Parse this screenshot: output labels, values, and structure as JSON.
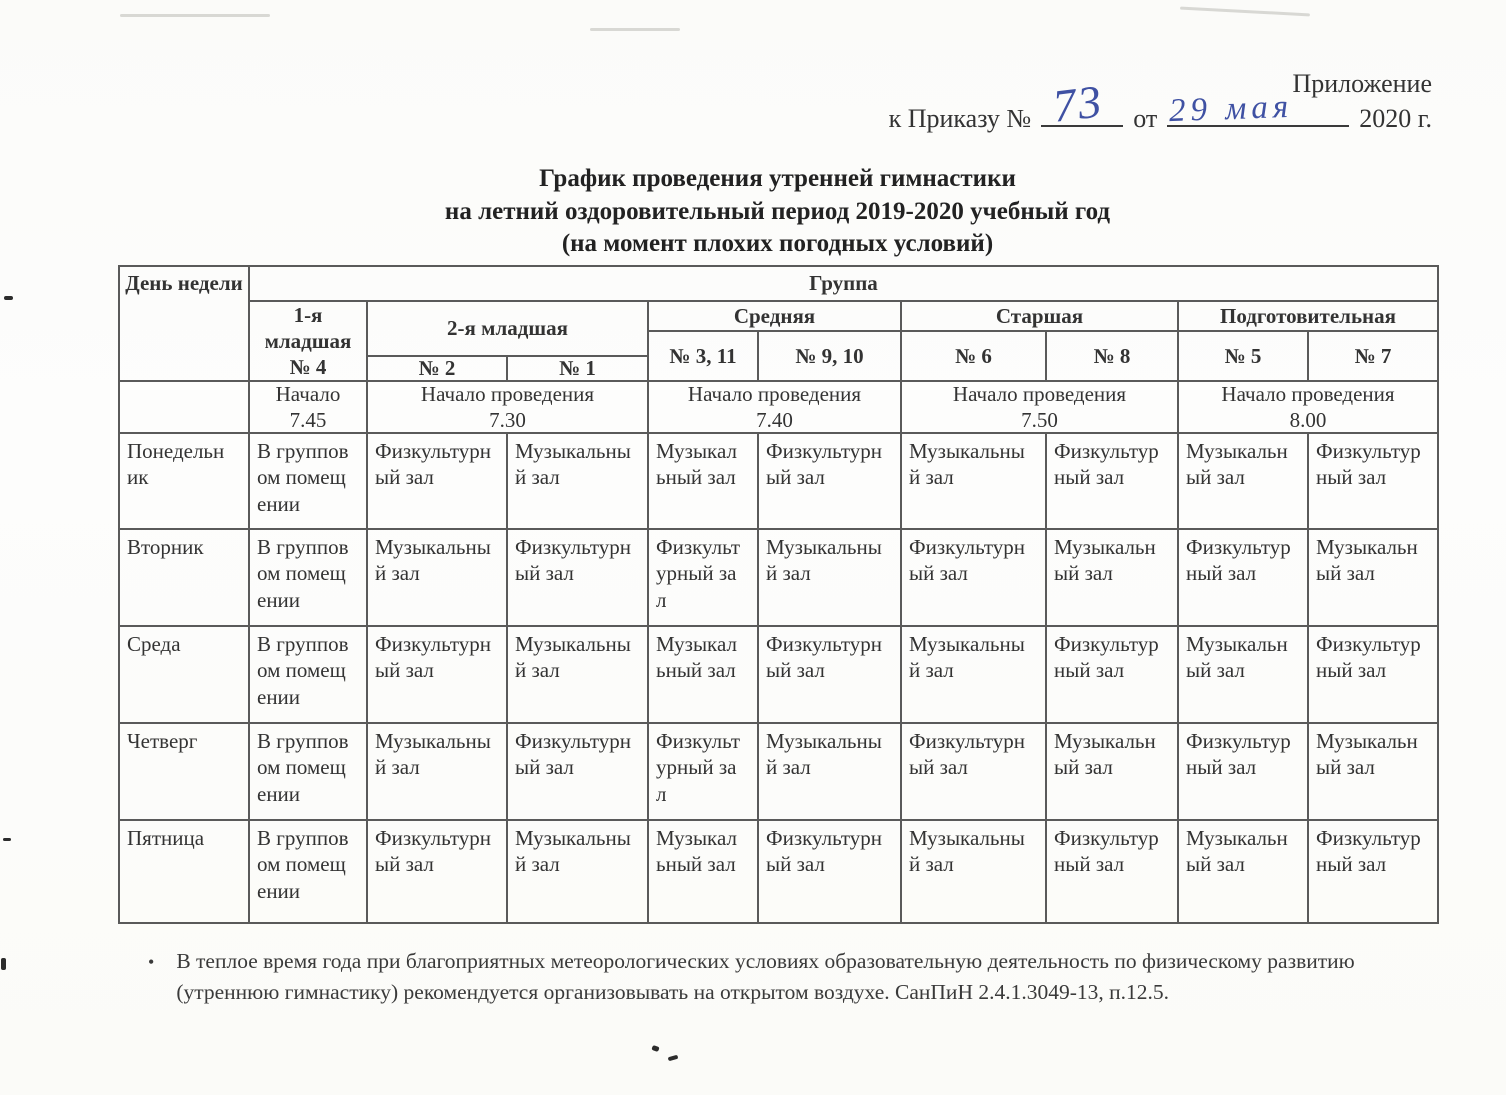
{
  "header": {
    "appendix": "Приложение",
    "order_prefix": "к Приказу №",
    "order_no": "73",
    "from_word": "от",
    "order_date": "29 мая",
    "year_suffix": "2020 г."
  },
  "title": {
    "line1": "График проведения утренней гимнастики",
    "line2": "на летний оздоровительный период 2019-2020 учебный год",
    "line3": "(на момент плохих погодных условий)"
  },
  "schedule": {
    "corner": "День недели",
    "banner": "Группа",
    "groups": [
      {
        "label": "1-я младшая",
        "sub": "№ 4"
      },
      {
        "label": "2-я младшая",
        "subs": [
          "№ 2",
          "№ 1"
        ]
      },
      {
        "label": "Средняя",
        "subs": [
          "№ 3, 11",
          "№ 9, 10"
        ]
      },
      {
        "label": "Старшая",
        "subs": [
          "№ 6",
          "№ 8"
        ]
      },
      {
        "label": "Подготовительная",
        "subs": [
          "№ 5",
          "№ 7"
        ]
      }
    ],
    "starts": [
      {
        "label": "Начало",
        "time": "7.45"
      },
      {
        "label": "Начало проведения",
        "time": "7.30"
      },
      {
        "label": "Начало проведения",
        "time": "7.40"
      },
      {
        "label": "Начало проведения",
        "time": "7.50"
      },
      {
        "label": "Начало проведения",
        "time": "8.00"
      }
    ],
    "rows": [
      {
        "day": "Понедельник",
        "cells": [
          "В групповом помещении",
          "Физкультурный зал",
          "Музыкальный зал",
          "Музыкальный зал",
          "Физкультурный зал",
          "Музыкальный зал",
          "Физкультурный зал",
          "Музыкальный зал",
          "Физкультурный зал"
        ]
      },
      {
        "day": "Вторник",
        "cells": [
          "В групповом помещении",
          "Музыкальный зал",
          "Физкультурный зал",
          "Физкультурный зал",
          "Музыкальный зал",
          "Физкультурный зал",
          "Музыкальный зал",
          "Физкультурный зал",
          "Музыкальный зал"
        ]
      },
      {
        "day": "Среда",
        "cells": [
          "В групповом помещении",
          "Физкультурный зал",
          "Музыкальный зал",
          "Музыкальный зал",
          "Физкультурный зал",
          "Музыкальный зал",
          "Физкультурный зал",
          "Музыкальный зал",
          "Физкультурный зал"
        ]
      },
      {
        "day": "Четверг",
        "cells": [
          "В групповом помещении",
          "Музыкальный зал",
          "Физкультурный зал",
          "Физкультурный зал",
          "Музыкальный зал",
          "Физкультурный зал",
          "Музыкальный зал",
          "Физкультурный зал",
          "Музыкальный зал"
        ]
      },
      {
        "day": "Пятница",
        "cells": [
          "В групповом помещении",
          "Физкультурный зал",
          "Музыкальный зал",
          "Музыкальный зал",
          "Физкультурный зал",
          "Музыкальный зал",
          "Физкультурный зал",
          "Музыкальный зал",
          "Физкультурный зал"
        ]
      }
    ]
  },
  "note": {
    "bullet": "•",
    "text": "В теплое время года при благоприятных метеорологических условиях образовательную деятельность по физическому развитию (утреннюю гимнастику) рекомендуется организовывать на открытом воздухе. СанПиН 2.4.1.3049-13, п.12.5."
  },
  "colors": {
    "ink_blue": "#3f51a3",
    "text": "#2e2e2e",
    "border": "#5a5a5a"
  }
}
